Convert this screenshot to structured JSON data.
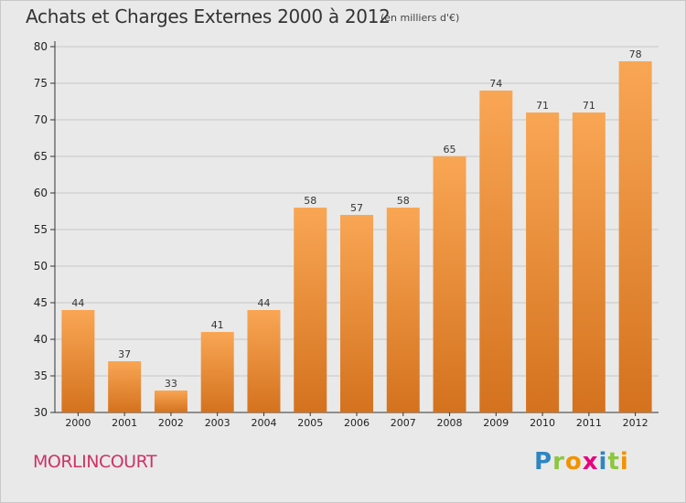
{
  "header": {
    "title": "Achats et Charges Externes 2000 à 2012",
    "subtitle": "(en milliers d'€)"
  },
  "footer": {
    "commune": "MORLINCOURT",
    "logo": [
      "P",
      "r",
      "o",
      "x",
      "i",
      "t",
      "i"
    ],
    "logo_colors": [
      "#2e86c1",
      "#8dc63f",
      "#f39200",
      "#e6007e",
      "#2e86c1",
      "#8dc63f",
      "#f39200"
    ]
  },
  "colors": {
    "bar_top": "#f9a654",
    "bar_bottom": "#d4721e",
    "grid": "#c8c8c8",
    "background": "#e9e9e9"
  },
  "chart_data": {
    "type": "bar",
    "title": "Achats et Charges Externes 2000 à 2012",
    "subtitle": "(en milliers d'€)",
    "categories": [
      "2000",
      "2001",
      "2002",
      "2003",
      "2004",
      "2005",
      "2006",
      "2007",
      "2008",
      "2009",
      "2010",
      "2011",
      "2012"
    ],
    "values": [
      44,
      37,
      33,
      41,
      44,
      58,
      57,
      58,
      65,
      74,
      71,
      71,
      78
    ],
    "ylim": [
      30,
      80
    ],
    "yticks": [
      30,
      35,
      40,
      45,
      50,
      55,
      60,
      65,
      70,
      75,
      80
    ],
    "grid": true,
    "xlabel": "",
    "ylabel": ""
  }
}
